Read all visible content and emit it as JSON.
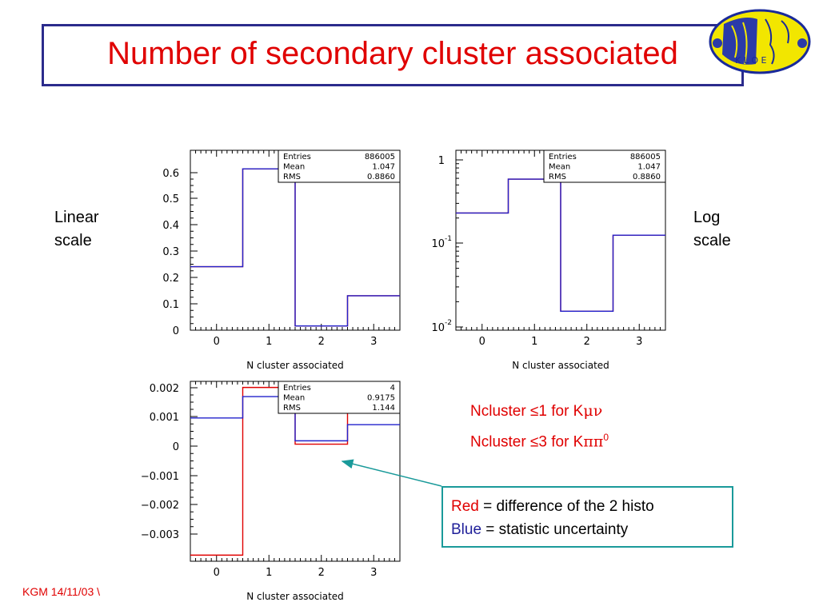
{
  "title": "Number of secondary cluster associated",
  "side_labels": {
    "left": [
      "Linear",
      "scale"
    ],
    "right": [
      "Log",
      "scale"
    ]
  },
  "notes": {
    "line1": {
      "prefix": "Ncluster ≤1 for K",
      "greek": "μν"
    },
    "line2": {
      "prefix": "Ncluster ≤3 for K",
      "greek": "ππ",
      "sup": "0"
    }
  },
  "legend": {
    "red_word": "Red",
    "red_text": " = difference of the 2 histo",
    "blue_word": "Blue",
    "blue_text": " = statistic uncertainty"
  },
  "footer": "KGM 14/11/03 \\",
  "colors": {
    "red": "#e00000",
    "blue": "#2222cc",
    "title_border": "#2b2b8c",
    "arrow": "#1a9a9a"
  },
  "chart_data": [
    {
      "type": "histogram",
      "scale": "linear",
      "xlabel": "N cluster associated",
      "x_ticks": [
        "0",
        "1",
        "2",
        "3"
      ],
      "xlim": [
        -0.5,
        3.5
      ],
      "ylim": [
        0,
        0.68
      ],
      "y_ticks": [
        "0",
        "0.1",
        "0.2",
        "0.3",
        "0.4",
        "0.5",
        "0.6"
      ],
      "bin_edges": [
        -0.5,
        0.5,
        1.5,
        2.5,
        3.5
      ],
      "series": [
        {
          "color": "red",
          "values": [
            0.24,
            0.61,
            0.016,
            0.13
          ]
        },
        {
          "color": "blue",
          "values": [
            0.24,
            0.61,
            0.016,
            0.13
          ]
        }
      ],
      "stats": [
        [
          "Entries",
          "886005"
        ],
        [
          "Mean",
          "1.047"
        ],
        [
          "RMS",
          "0.8860"
        ]
      ]
    },
    {
      "type": "histogram",
      "scale": "log",
      "xlabel": "N cluster associated",
      "x_ticks": [
        "0",
        "1",
        "2",
        "3"
      ],
      "xlim": [
        -0.5,
        3.5
      ],
      "ylim": [
        0.0095,
        1.35
      ],
      "y_ticks": [
        "1",
        "10^-1",
        "10^-2"
      ],
      "bin_edges": [
        -0.5,
        0.5,
        1.5,
        2.5,
        3.5
      ],
      "series": [
        {
          "color": "red",
          "values": [
            0.24,
            0.61,
            0.016,
            0.13
          ]
        },
        {
          "color": "blue",
          "values": [
            0.24,
            0.61,
            0.016,
            0.13
          ]
        }
      ],
      "stats": [
        [
          "Entries",
          "886005"
        ],
        [
          "Mean",
          "1.047"
        ],
        [
          "RMS",
          "0.8860"
        ]
      ]
    },
    {
      "type": "histogram",
      "scale": "linear",
      "xlabel": "N cluster associated",
      "x_ticks": [
        "0",
        "1",
        "2",
        "3"
      ],
      "xlim": [
        -0.5,
        3.5
      ],
      "ylim": [
        -0.0037,
        0.0022
      ],
      "y_ticks": [
        "0.002",
        "0.001",
        "0",
        "−0.001",
        "−0.002",
        "−0.003"
      ],
      "bin_edges": [
        -0.5,
        0.5,
        1.5,
        2.5,
        3.5
      ],
      "series": [
        {
          "color": "red",
          "values": [
            -0.0035,
            0.002,
            0.00014,
            0.0014
          ]
        },
        {
          "color": "blue",
          "values": [
            0.001,
            0.0017,
            0.00025,
            0.00078
          ]
        }
      ],
      "stats": [
        [
          "Entries",
          "4"
        ],
        [
          "Mean",
          "0.9175"
        ],
        [
          "RMS",
          "1.144"
        ]
      ]
    }
  ]
}
